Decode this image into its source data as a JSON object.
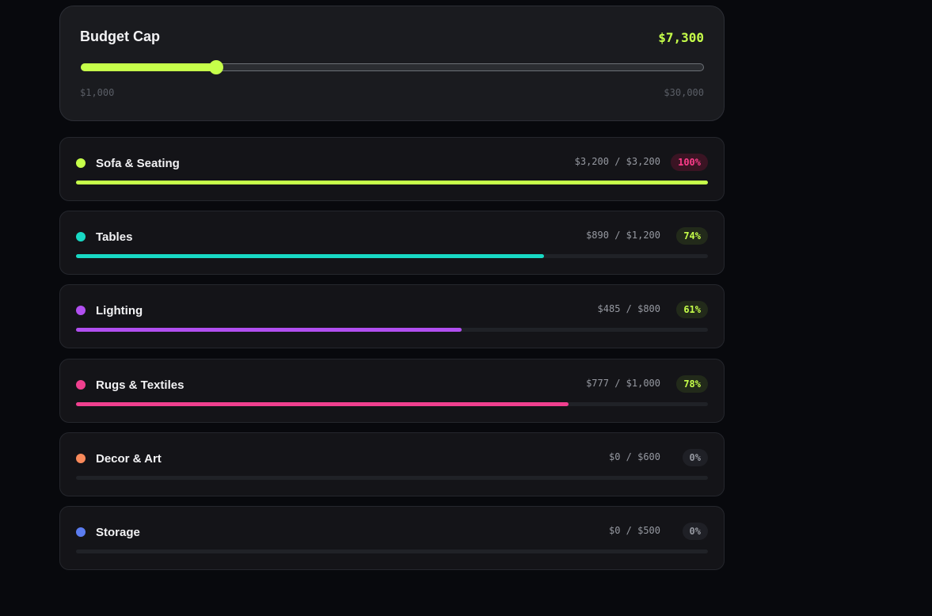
{
  "budget_cap": {
    "title": "Budget Cap",
    "value": "$7,300",
    "value_fraction": 0.2172,
    "min_label": "$1,000",
    "max_label": "$30,000",
    "accent": "#c6ff4a"
  },
  "categories": [
    {
      "name": "Sofa & Seating",
      "amounts": "$3,200 / $3,200",
      "percent_label": "100%",
      "progress": 1.0,
      "color": "#c6ff4a",
      "badge_text_color": "#ff3d8b",
      "badge_bg": "#3a1423"
    },
    {
      "name": "Tables",
      "amounts": "$890 / $1,200",
      "percent_label": "74%",
      "progress": 0.74,
      "color": "#18d9c4",
      "badge_text_color": "#c6ff4a",
      "badge_bg": "#222a1a"
    },
    {
      "name": "Lighting",
      "amounts": "$485 / $800",
      "percent_label": "61%",
      "progress": 0.61,
      "color": "#b14ff0",
      "badge_text_color": "#c6ff4a",
      "badge_bg": "#222a1a"
    },
    {
      "name": "Rugs & Textiles",
      "amounts": "$777 / $1,000",
      "percent_label": "78%",
      "progress": 0.78,
      "color": "#f0408f",
      "badge_text_color": "#c6ff4a",
      "badge_bg": "#222a1a"
    },
    {
      "name": "Decor & Art",
      "amounts": "$0 / $600",
      "percent_label": "0%",
      "progress": 0,
      "color": "#f98a5b",
      "badge_text_color": "#9699a1",
      "badge_bg": "#1f2026"
    },
    {
      "name": "Storage",
      "amounts": "$0 / $500",
      "percent_label": "0%",
      "progress": 0,
      "color": "#5b7cf0",
      "badge_text_color": "#9699a1",
      "badge_bg": "#1f2026"
    }
  ]
}
